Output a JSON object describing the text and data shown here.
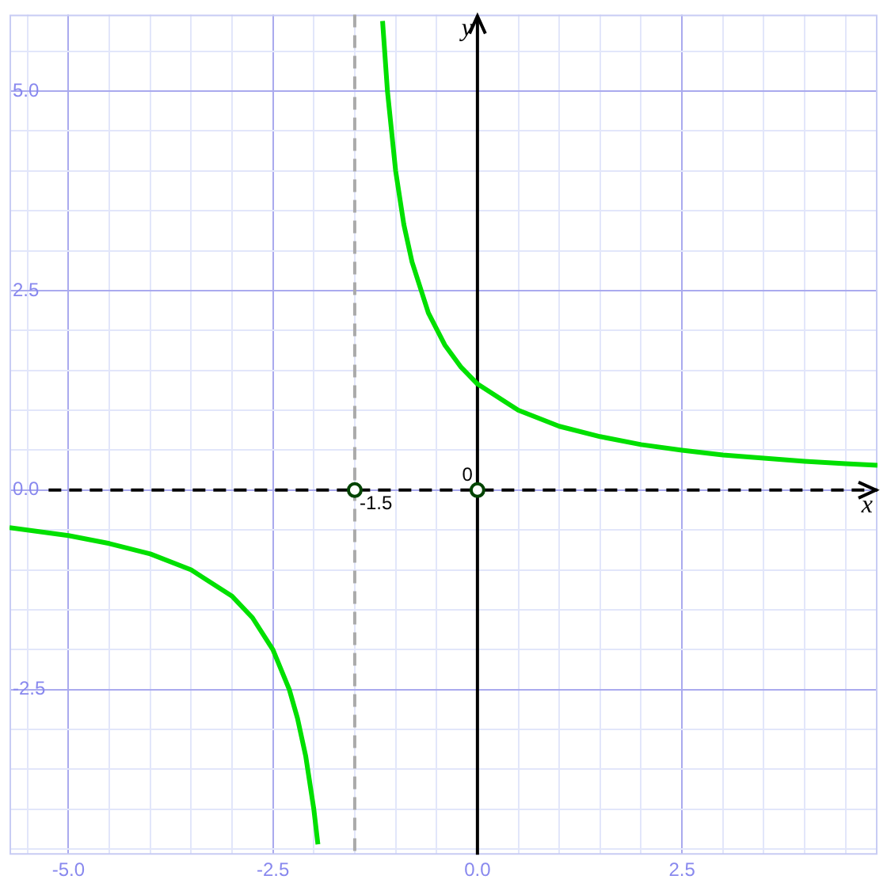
{
  "chart_data": {
    "type": "line",
    "xlabel": "x",
    "ylabel": "y",
    "xlim": [
      -5.72,
      4.89
    ],
    "ylim": [
      -4.57,
      5.96
    ],
    "xticks": [
      {
        "value": -5.5,
        "label": null
      },
      {
        "value": -5,
        "label": "-5.0"
      },
      {
        "value": -4.5,
        "label": null
      },
      {
        "value": -4,
        "label": null
      },
      {
        "value": -3.5,
        "label": null
      },
      {
        "value": -3,
        "label": null
      },
      {
        "value": -2.5,
        "label": "-2.5"
      },
      {
        "value": -2,
        "label": null
      },
      {
        "value": -1.5,
        "label": null
      },
      {
        "value": -1,
        "label": null
      },
      {
        "value": -0.5,
        "label": null
      },
      {
        "value": 0,
        "label": "0.0"
      },
      {
        "value": 0.5,
        "label": null
      },
      {
        "value": 1,
        "label": null
      },
      {
        "value": 1.5,
        "label": null
      },
      {
        "value": 2,
        "label": null
      },
      {
        "value": 2.5,
        "label": "2.5"
      },
      {
        "value": 3,
        "label": null
      },
      {
        "value": 3.5,
        "label": null
      },
      {
        "value": 4,
        "label": null
      },
      {
        "value": 4.5,
        "label": null
      }
    ],
    "yticks": [
      {
        "value": -4.5,
        "label": null
      },
      {
        "value": -4,
        "label": null
      },
      {
        "value": -3.5,
        "label": null
      },
      {
        "value": -3,
        "label": null
      },
      {
        "value": -2.5,
        "label": "-2.5"
      },
      {
        "value": -2,
        "label": null
      },
      {
        "value": -1.5,
        "label": null
      },
      {
        "value": -1,
        "label": null
      },
      {
        "value": -0.5,
        "label": null
      },
      {
        "value": 0,
        "label": "0.0"
      },
      {
        "value": 0.5,
        "label": null
      },
      {
        "value": 1,
        "label": null
      },
      {
        "value": 1.5,
        "label": null
      },
      {
        "value": 2,
        "label": null
      },
      {
        "value": 2.5,
        "label": "2.5"
      },
      {
        "value": 3,
        "label": null
      },
      {
        "value": 3.5,
        "label": null
      },
      {
        "value": 4,
        "label": null
      },
      {
        "value": 4.5,
        "label": null
      },
      {
        "value": 5,
        "label": "5.0"
      },
      {
        "value": 5.5,
        "label": null
      }
    ],
    "grid": true,
    "legend": false,
    "series": [
      {
        "color": "#00e000",
        "marker": "none",
        "x": [
          -5.72,
          -5,
          -4.5,
          -4,
          -3.5,
          -3,
          -2.75,
          -2.5,
          -2.3,
          -2.2,
          -2.1,
          -2,
          -1.95,
          -1.5,
          -1.16,
          -1.1,
          -1,
          -0.9,
          -0.8,
          -0.6,
          -0.4,
          -0.2,
          0,
          0.5,
          1,
          1.5,
          2,
          2.5,
          3,
          3.5,
          4,
          4.5,
          4.89
        ],
        "values": [
          -0.47,
          -0.57,
          -0.67,
          -0.8,
          -1.0,
          -1.33,
          -1.6,
          -2.0,
          -2.5,
          -2.86,
          -3.33,
          -4.0,
          -4.44,
          null,
          5.88,
          5.0,
          4.0,
          3.33,
          2.86,
          2.22,
          1.82,
          1.54,
          1.33,
          1.0,
          0.8,
          0.67,
          0.57,
          0.5,
          0.44,
          0.4,
          0.36,
          0.33,
          0.31
        ]
      },
      {
        "type": "scatter",
        "color": "#004400",
        "marker": "circle",
        "x": [
          -1.5,
          0
        ],
        "values": [
          0,
          0
        ]
      }
    ],
    "ref_lines": [
      {
        "axis": "x",
        "value": -1.5,
        "color": "#aaaaaa",
        "line_style": "dashed"
      },
      {
        "axis": "y",
        "value": 0,
        "color": "#000000",
        "line_style": "dashed"
      }
    ],
    "annotations": [
      {
        "text": "-1.5",
        "x": -1.5,
        "y": 0
      },
      {
        "text": "0",
        "x": 0,
        "y": 0
      }
    ]
  }
}
